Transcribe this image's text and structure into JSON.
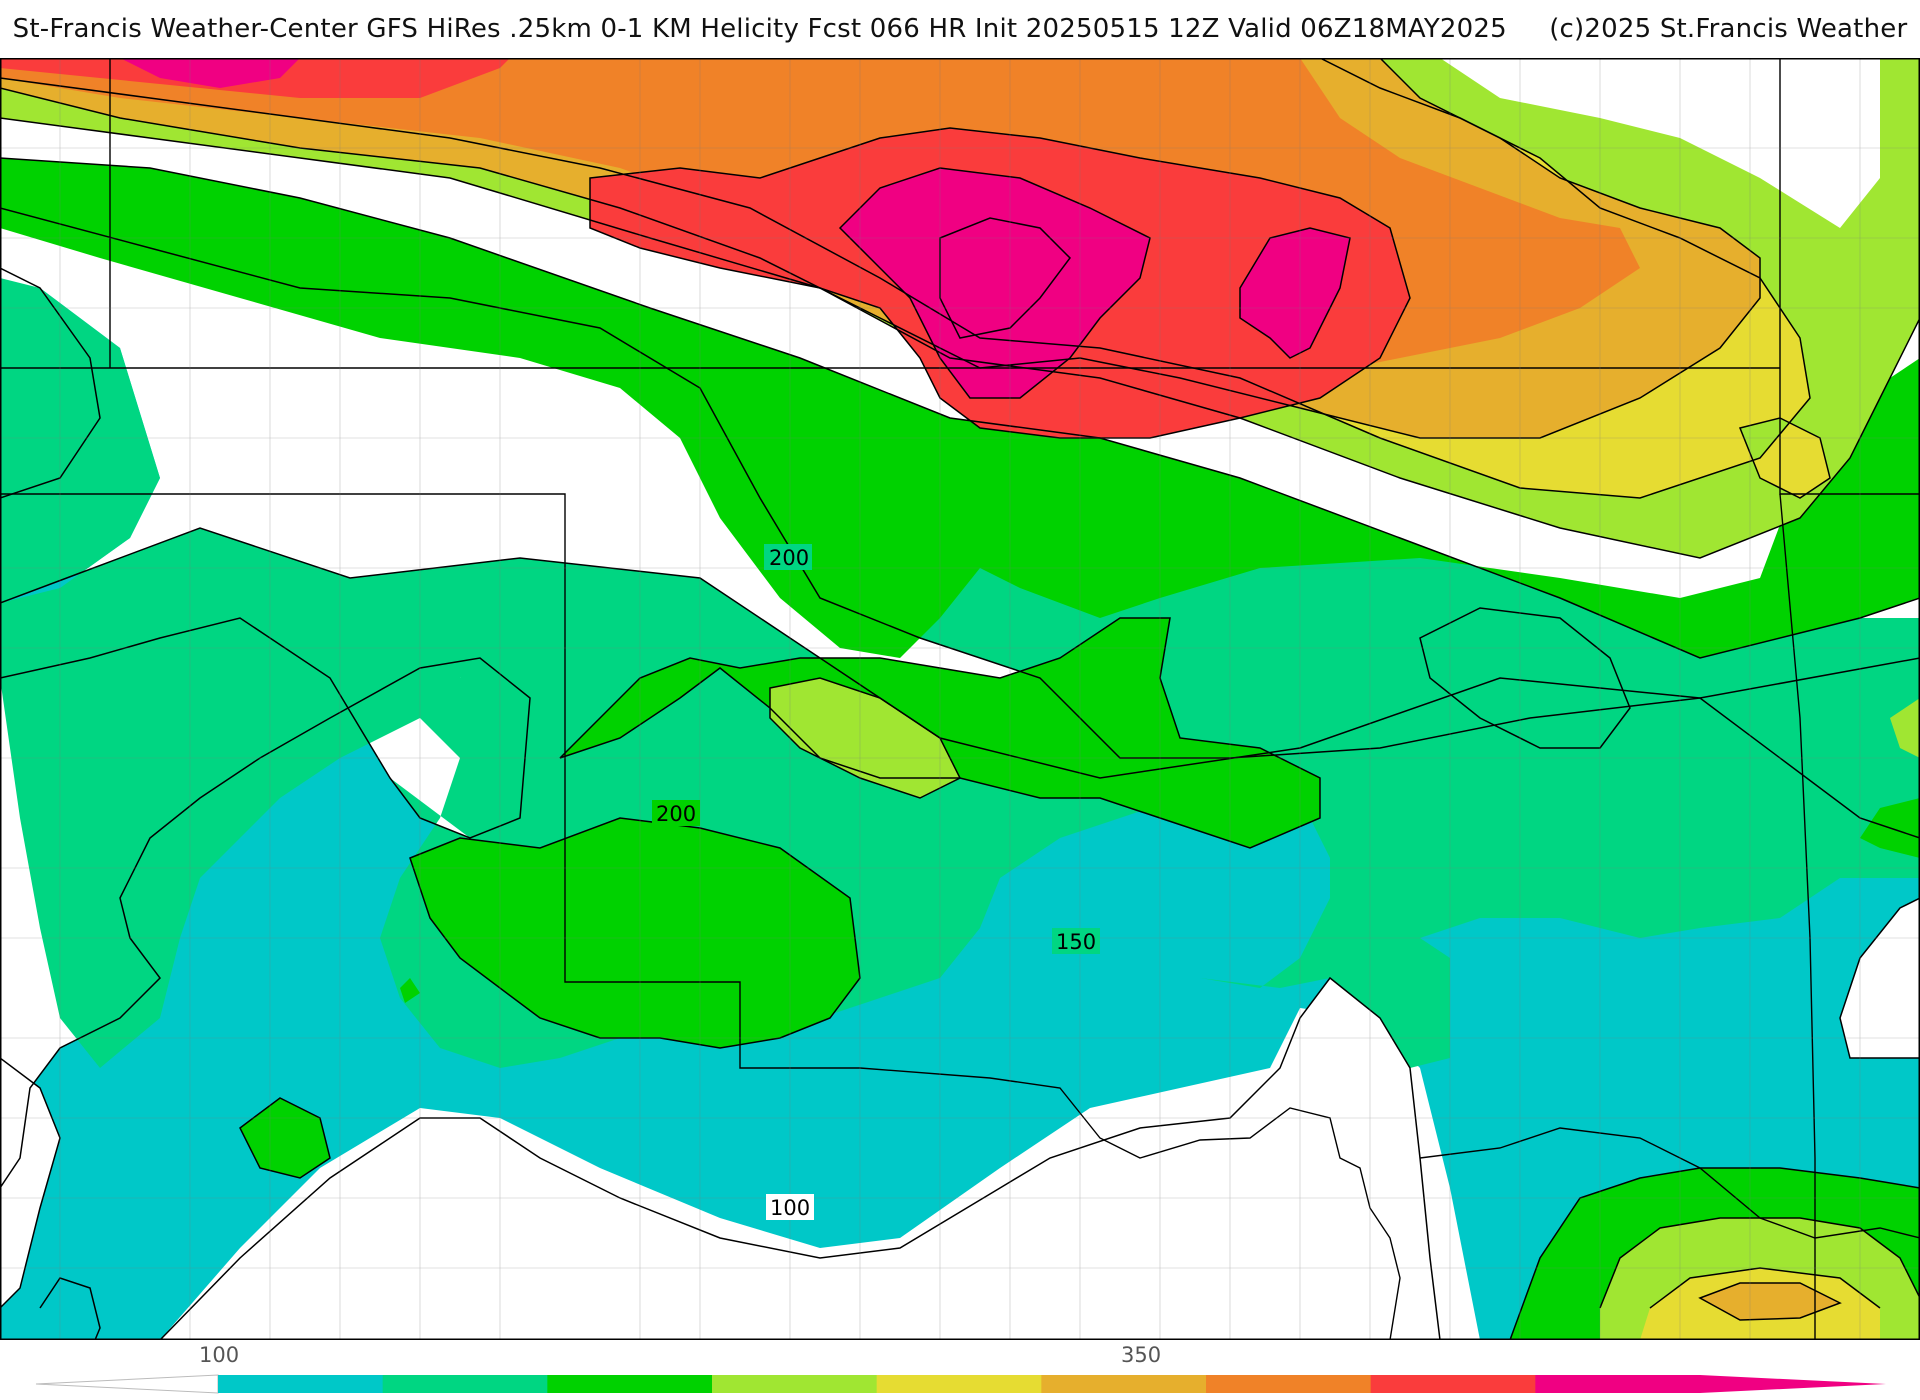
{
  "title": {
    "main": "St-Francis Weather-Center GFS HiRes .25km 0-1 KM Helicity Fcst 066 HR Init 20250515 12Z  Valid 06Z18MAY2025",
    "copyright": "(c)2025 St.Francis Weather"
  },
  "contour_labels": [
    "200",
    "200",
    "150",
    "100"
  ],
  "colorbar": {
    "tick_labels": [
      "100",
      "350"
    ],
    "colors": [
      "#00c8c8",
      "#00d682",
      "#00d200",
      "#a0e632",
      "#e6dc32",
      "#e6af2d",
      "#f08228",
      "#fa3c3c",
      "#f00082"
    ]
  }
}
